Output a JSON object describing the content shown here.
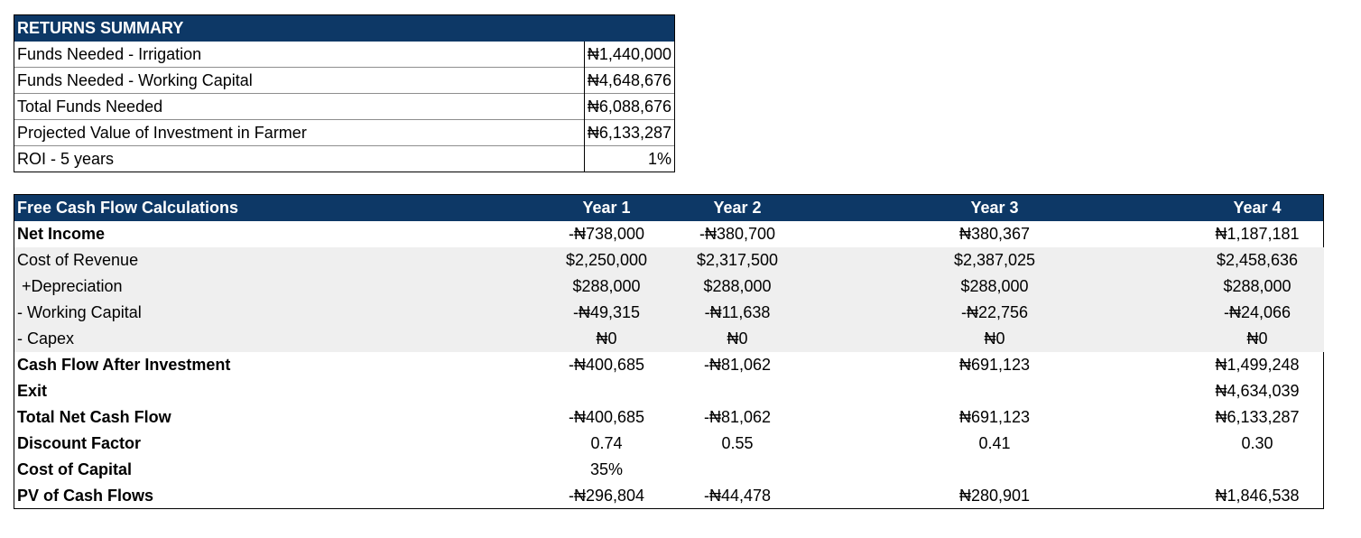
{
  "returns_summary": {
    "title": "RETURNS SUMMARY",
    "rows": [
      {
        "label": "Funds Needed - Irrigation",
        "value": "₦1,440,000"
      },
      {
        "label": "Funds Needed - Working Capital",
        "value": "₦4,648,676"
      },
      {
        "label": "Total Funds Needed",
        "value": "₦6,088,676"
      },
      {
        "label": "Projected Value of Investment in Farmer",
        "value": "₦6,133,287"
      },
      {
        "label": "ROI - 5 years",
        "value": "1%"
      }
    ]
  },
  "fcf": {
    "title": "Free Cash Flow Calculations",
    "years": [
      "Year 1",
      "Year 2",
      "Year 3",
      "Year 4"
    ],
    "rows": [
      {
        "label": "Net Income",
        "bold": true,
        "shade": false,
        "values": [
          "-₦738,000",
          "-₦380,700",
          "₦380,367",
          "₦1,187,181"
        ]
      },
      {
        "label": "Cost of Revenue",
        "bold": false,
        "shade": true,
        "values": [
          "$2,250,000",
          "$2,317,500",
          "$2,387,025",
          "$2,458,636"
        ]
      },
      {
        "label": " +Depreciation",
        "bold": false,
        "shade": true,
        "values": [
          "$288,000",
          "$288,000",
          "$288,000",
          "$288,000"
        ]
      },
      {
        "label": "- Working Capital",
        "bold": false,
        "shade": true,
        "values": [
          "-₦49,315",
          "-₦11,638",
          "-₦22,756",
          "-₦24,066"
        ]
      },
      {
        "label": "- Capex",
        "bold": false,
        "shade": true,
        "values": [
          "₦0",
          "₦0",
          "₦0",
          "₦0"
        ]
      },
      {
        "label": "Cash Flow After Investment",
        "bold": true,
        "shade": false,
        "values": [
          "-₦400,685",
          "-₦81,062",
          "₦691,123",
          "₦1,499,248"
        ]
      },
      {
        "label": "Exit",
        "bold": true,
        "shade": false,
        "values": [
          "",
          "",
          "",
          "₦4,634,039"
        ]
      },
      {
        "label": "Total Net Cash Flow",
        "bold": true,
        "shade": false,
        "values": [
          "-₦400,685",
          "-₦81,062",
          "₦691,123",
          "₦6,133,287"
        ]
      },
      {
        "label": "Discount Factor",
        "bold": true,
        "shade": false,
        "values": [
          "0.74",
          "0.55",
          "0.41",
          "0.30"
        ]
      },
      {
        "label": "Cost of Capital",
        "bold": true,
        "shade": false,
        "values": [
          "35%",
          "",
          "",
          ""
        ]
      },
      {
        "label": "PV of Cash Flows",
        "bold": true,
        "shade": false,
        "values": [
          "-₦296,804",
          "-₦44,478",
          "₦280,901",
          "₦1,846,538"
        ]
      }
    ]
  }
}
